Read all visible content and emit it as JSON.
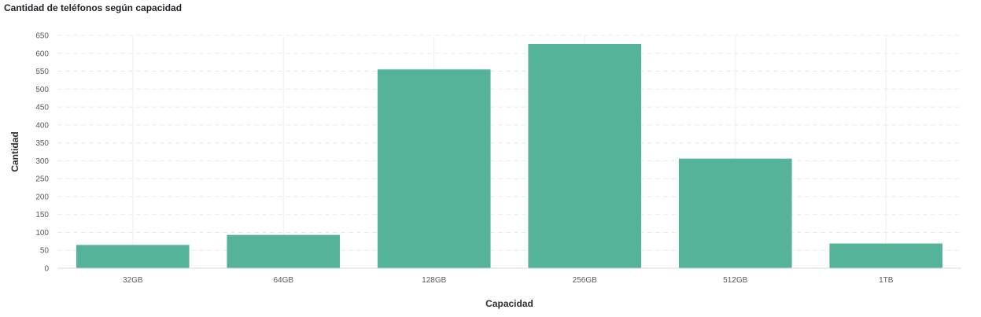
{
  "chart_data": {
    "type": "bar",
    "title": "Cantidad de teléfonos según capacidad",
    "xlabel": "Capacidad",
    "ylabel": "Cantidad",
    "categories": [
      "32GB",
      "64GB",
      "128GB",
      "256GB",
      "512GB",
      "1TB"
    ],
    "values": [
      65,
      93,
      555,
      626,
      306,
      69
    ],
    "ylim": [
      0,
      650
    ],
    "yticks": [
      0,
      50,
      100,
      150,
      200,
      250,
      300,
      350,
      400,
      450,
      500,
      550,
      600,
      650
    ],
    "grid": true,
    "bar_color": "#54b399"
  }
}
